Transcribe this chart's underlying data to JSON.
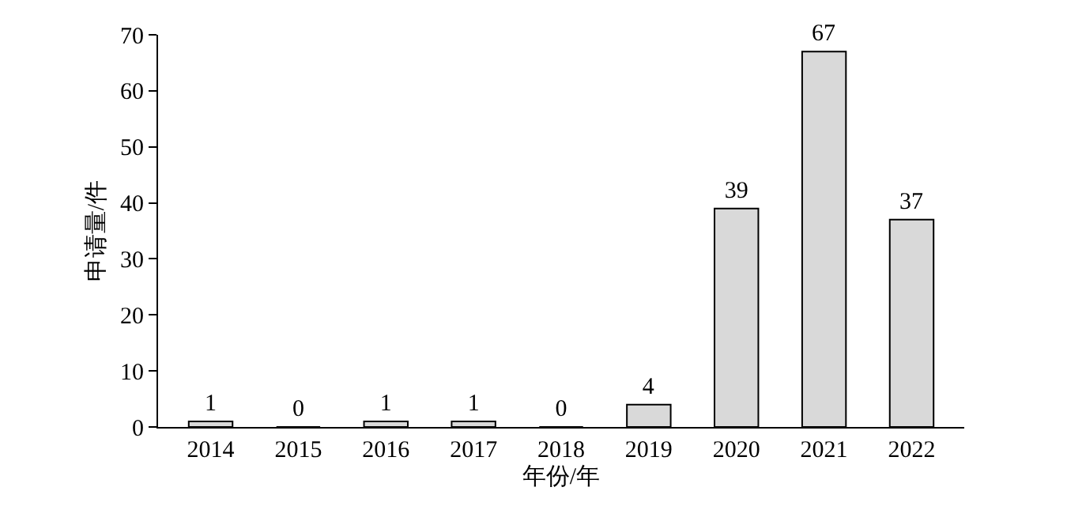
{
  "chart_data": {
    "type": "bar",
    "xlabel": "年份/年",
    "ylabel": "申请量/件",
    "categories": [
      "2014",
      "2015",
      "2016",
      "2017",
      "2018",
      "2019",
      "2020",
      "2021",
      "2022"
    ],
    "values": [
      1,
      0,
      1,
      1,
      0,
      4,
      39,
      67,
      37
    ],
    "color": "#d9d9d9",
    "ylim": [
      0,
      70
    ],
    "yticks": [
      0,
      10,
      20,
      30,
      40,
      50,
      60,
      70
    ],
    "data_labels": true
  }
}
